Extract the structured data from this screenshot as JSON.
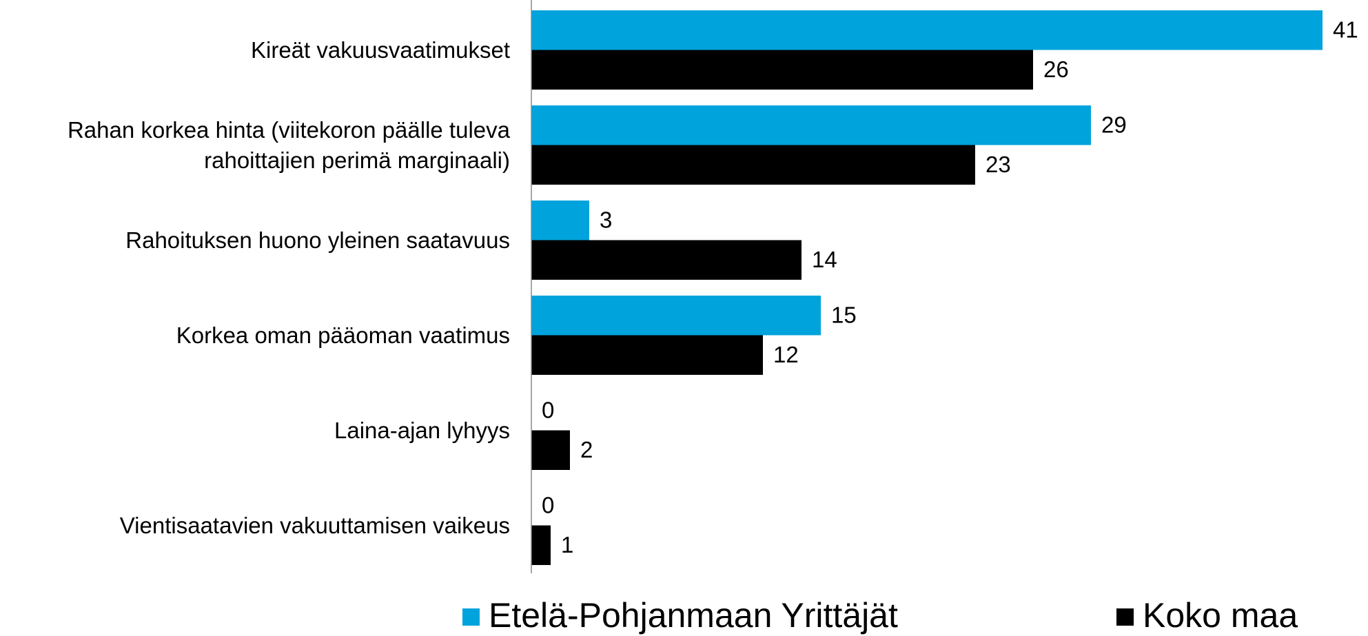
{
  "chart_data": {
    "type": "hbar",
    "categories": [
      "Kireät vakuusvaatimukset",
      "Rahan korkea hinta (viitekoron päälle tuleva rahoittajien perimä marginaali)",
      "Rahoituksen huono yleinen saatavuus",
      "Korkea oman pääoman vaatimus",
      "Laina-ajan lyhyys",
      "Vientisaatavien vakuuttamisen vaikeus"
    ],
    "series": [
      {
        "name": "Etelä-Pohjanmaan Yrittäjät",
        "color": "#00a3dc",
        "values": [
          41,
          29,
          3,
          15,
          0,
          0
        ]
      },
      {
        "name": "Koko maa",
        "color": "#000000",
        "values": [
          26,
          23,
          14,
          12,
          2,
          1
        ]
      }
    ],
    "xlim": [
      0,
      43
    ],
    "legend": "bottom"
  }
}
